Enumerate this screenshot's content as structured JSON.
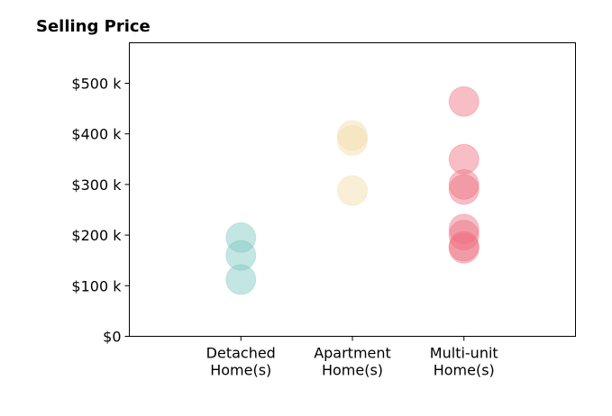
{
  "chart_data": {
    "type": "scatter",
    "title": "Selling Price",
    "xlabel": "",
    "ylabel": "",
    "categories": [
      [
        "Detached",
        "Home(s)"
      ],
      [
        "Apartment",
        "Home(s)"
      ],
      [
        "Multi-unit",
        "Home(s)"
      ]
    ],
    "y_ticks": [
      0,
      100000,
      200000,
      300000,
      400000,
      500000
    ],
    "y_tick_labels": [
      "$0",
      "$100 k",
      "$200 k",
      "$300 k",
      "$400 k",
      "$500 k"
    ],
    "ylim": [
      0,
      580000
    ],
    "xlim": [
      -1,
      3
    ],
    "grid": false,
    "series": [
      {
        "category_index": 0,
        "color": "#7cc8c0",
        "values": [
          195000,
          160000,
          112000
        ]
      },
      {
        "category_index": 1,
        "color": "#f2dba6",
        "values": [
          397000,
          387000,
          288000
        ]
      },
      {
        "category_index": 2,
        "color": "#ee6f80",
        "values": [
          464000,
          350000,
          300000,
          290000,
          212000,
          200000,
          178000,
          174000
        ]
      }
    ]
  }
}
